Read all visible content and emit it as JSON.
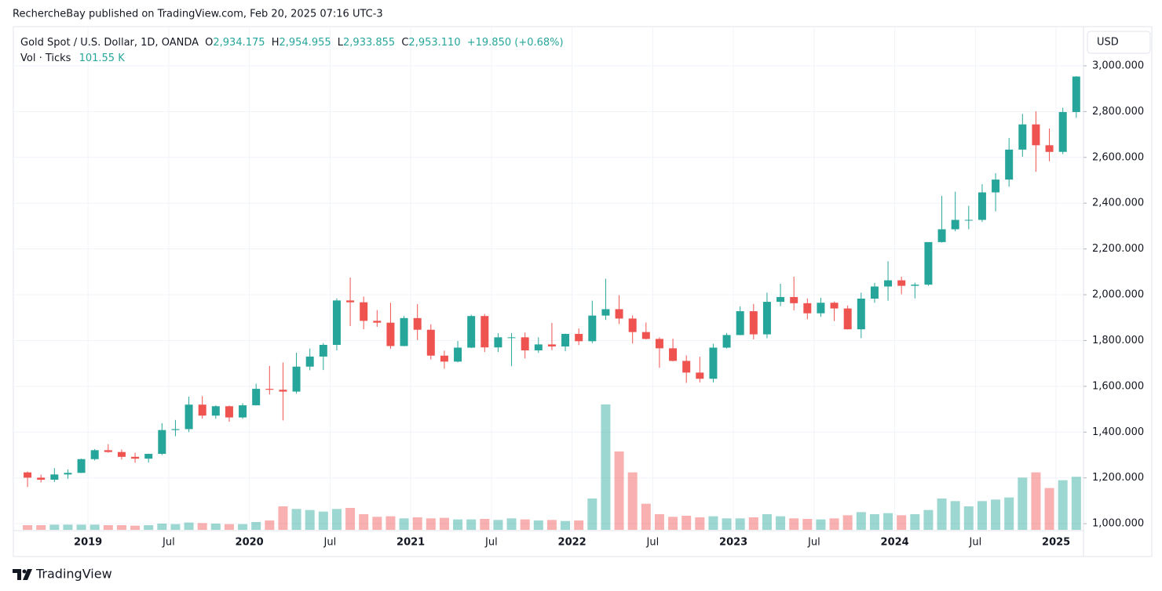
{
  "header": {
    "publisher": "RechercheBay published on TradingView.com, Feb 20, 2025 07:16 UTC-3"
  },
  "footer": {
    "brand": "TradingView"
  },
  "chart_data": {
    "type": "candlestick",
    "legend": {
      "symbol": "Gold Spot / U.S. Dollar, 1D, OANDA",
      "o": "O",
      "open": "2,934.175",
      "h": "H",
      "high": "2,954.955",
      "l": "L",
      "low": "2,933.855",
      "c": "C",
      "close": "2,953.110",
      "change": "+19.850 (+0.68%)",
      "volume_name": "Vol · Ticks",
      "volume": "101.55 K"
    },
    "currency": "USD",
    "up_color": "#26a69a",
    "down_color": "#ef5350",
    "grid": true,
    "x": [
      "2018-08",
      "2018-09",
      "2018-10",
      "2018-11",
      "2018-12",
      "2019-01",
      "2019-02",
      "2019-03",
      "2019-04",
      "2019-05",
      "2019-06",
      "2019-07",
      "2019-08",
      "2019-09",
      "2019-10",
      "2019-11",
      "2019-12",
      "2020-01",
      "2020-02",
      "2020-03",
      "2020-04",
      "2020-05",
      "2020-06",
      "2020-07",
      "2020-08",
      "2020-09",
      "2020-10",
      "2020-11",
      "2020-12",
      "2021-01",
      "2021-02",
      "2021-03",
      "2021-04",
      "2021-05",
      "2021-06",
      "2021-07",
      "2021-08",
      "2021-09",
      "2021-10",
      "2021-11",
      "2021-12",
      "2022-01",
      "2022-02",
      "2022-03",
      "2022-04",
      "2022-05",
      "2022-06",
      "2022-07",
      "2022-08",
      "2022-09",
      "2022-10",
      "2022-11",
      "2022-12",
      "2023-01",
      "2023-02",
      "2023-03",
      "2023-04",
      "2023-05",
      "2023-06",
      "2023-07",
      "2023-08",
      "2023-09",
      "2023-10",
      "2023-11",
      "2023-12",
      "2024-01",
      "2024-02",
      "2024-03",
      "2024-04",
      "2024-05",
      "2024-06",
      "2024-07",
      "2024-08",
      "2024-09",
      "2024-10",
      "2024-11",
      "2024-12",
      "2025-01",
      "2025-02"
    ],
    "open": [
      1224,
      1201,
      1192,
      1215,
      1222,
      1282,
      1321,
      1313,
      1292,
      1284,
      1305,
      1409,
      1413,
      1520,
      1472,
      1513,
      1464,
      1517,
      1589,
      1585,
      1577,
      1686,
      1730,
      1781,
      1975,
      1967,
      1886,
      1878,
      1776,
      1898,
      1847,
      1734,
      1708,
      1769,
      1907,
      1770,
      1814,
      1814,
      1757,
      1783,
      1774,
      1829,
      1797,
      1909,
      1937,
      1896,
      1837,
      1807,
      1766,
      1711,
      1660,
      1633,
      1769,
      1824,
      1928,
      1827,
      1969,
      1990,
      1963,
      1919,
      1965,
      1940,
      1849,
      1983,
      2036,
      2063,
      2039,
      2044,
      2230,
      2286,
      2327,
      2327,
      2447,
      2503,
      2634,
      2744,
      2653,
      2624,
      2798
    ],
    "high": [
      1228,
      1214,
      1243,
      1237,
      1284,
      1326,
      1347,
      1324,
      1310,
      1306,
      1439,
      1453,
      1555,
      1557,
      1517,
      1516,
      1526,
      1611,
      1689,
      1704,
      1747,
      1765,
      1789,
      1984,
      2075,
      1992,
      1933,
      1965,
      1907,
      1959,
      1871,
      1756,
      1798,
      1913,
      1916,
      1832,
      1833,
      1835,
      1814,
      1877,
      1830,
      1853,
      1974,
      2070,
      1998,
      1910,
      1879,
      1814,
      1808,
      1735,
      1729,
      1786,
      1833,
      1949,
      1960,
      2009,
      2048,
      2079,
      1984,
      1987,
      1970,
      1953,
      2009,
      2052,
      2146,
      2079,
      2053,
      2223,
      2432,
      2450,
      2388,
      2483,
      2531,
      2685,
      2790,
      2801,
      2726,
      2817,
      2954.955
    ],
    "low": [
      1160,
      1180,
      1182,
      1196,
      1221,
      1276,
      1310,
      1280,
      1266,
      1267,
      1300,
      1382,
      1400,
      1459,
      1458,
      1445,
      1458,
      1517,
      1564,
      1451,
      1568,
      1670,
      1671,
      1757,
      1863,
      1849,
      1860,
      1764,
      1775,
      1802,
      1717,
      1677,
      1705,
      1767,
      1750,
      1750,
      1688,
      1722,
      1746,
      1758,
      1753,
      1780,
      1789,
      1890,
      1872,
      1787,
      1805,
      1681,
      1709,
      1615,
      1617,
      1617,
      1765,
      1823,
      1805,
      1810,
      1950,
      1932,
      1893,
      1903,
      1885,
      1848,
      1810,
      1965,
      1974,
      2002,
      1984,
      2039,
      2228,
      2277,
      2286,
      2318,
      2364,
      2472,
      2603,
      2537,
      2583,
      2614,
      2773
    ],
    "close": [
      1201,
      1192,
      1215,
      1222,
      1282,
      1321,
      1313,
      1292,
      1284,
      1305,
      1409,
      1413,
      1520,
      1472,
      1513,
      1464,
      1517,
      1589,
      1585,
      1577,
      1686,
      1730,
      1781,
      1975,
      1967,
      1886,
      1878,
      1776,
      1898,
      1847,
      1734,
      1708,
      1769,
      1907,
      1770,
      1814,
      1814,
      1757,
      1783,
      1774,
      1829,
      1797,
      1909,
      1937,
      1896,
      1837,
      1807,
      1766,
      1711,
      1660,
      1633,
      1769,
      1824,
      1928,
      1827,
      1969,
      1990,
      1963,
      1919,
      1965,
      1940,
      1849,
      1983,
      2036,
      2063,
      2039,
      2044,
      2230,
      2286,
      2327,
      2327,
      2447,
      2503,
      2634,
      2744,
      2653,
      2624,
      2798,
      2953.11
    ],
    "volume": [
      9000,
      9000,
      10000,
      10000,
      10000,
      10000,
      9000,
      9000,
      8000,
      9000,
      12000,
      11000,
      14000,
      13000,
      12000,
      11000,
      11000,
      15000,
      18000,
      45000,
      40000,
      38000,
      35000,
      40000,
      42000,
      30000,
      25000,
      26000,
      22000,
      24000,
      22000,
      23000,
      20000,
      20000,
      21000,
      19000,
      22000,
      20000,
      18000,
      19000,
      17000,
      18000,
      60000,
      240000,
      150000,
      110000,
      50000,
      30000,
      25000,
      27000,
      24000,
      26000,
      22000,
      22000,
      24000,
      30000,
      26000,
      22000,
      21000,
      20000,
      22000,
      28000,
      34000,
      30000,
      32000,
      28000,
      30000,
      38000,
      60000,
      55000,
      45000,
      55000,
      58000,
      62000,
      100000,
      110000,
      80000,
      95000,
      101550
    ],
    "ylim": [
      973,
      3171
    ],
    "yticks": [
      {
        "value": 1000,
        "label": "1,000.000"
      },
      {
        "value": 1200,
        "label": "1,200.000"
      },
      {
        "value": 1400,
        "label": "1,400.000"
      },
      {
        "value": 1600,
        "label": "1,600.000"
      },
      {
        "value": 1800,
        "label": "1,800.000"
      },
      {
        "value": 2000,
        "label": "2,000.000"
      },
      {
        "value": 2200,
        "label": "2,200.000"
      },
      {
        "value": 2400,
        "label": "2,400.000"
      },
      {
        "value": 2600,
        "label": "2,600.000"
      },
      {
        "value": 2800,
        "label": "2,800.000"
      },
      {
        "value": 3000,
        "label": "3,000.000"
      }
    ],
    "xticks": [
      {
        "value": "2019-01",
        "label": "2019"
      },
      {
        "value": "2019-07",
        "label": "Jul"
      },
      {
        "value": "2020-01",
        "label": "2020"
      },
      {
        "value": "2020-07",
        "label": "Jul"
      },
      {
        "value": "2021-01",
        "label": "2021"
      },
      {
        "value": "2021-07",
        "label": "Jul"
      },
      {
        "value": "2022-01",
        "label": "2022"
      },
      {
        "value": "2022-07",
        "label": "Jul"
      },
      {
        "value": "2023-01",
        "label": "2023"
      },
      {
        "value": "2023-07",
        "label": "Jul"
      },
      {
        "value": "2024-01",
        "label": "2024"
      },
      {
        "value": "2024-07",
        "label": "Jul"
      },
      {
        "value": "2025-01",
        "label": "2025"
      }
    ]
  }
}
